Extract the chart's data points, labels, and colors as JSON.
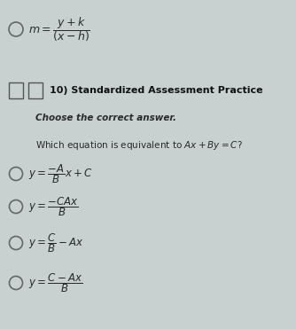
{
  "background_color": "#c8d0d0",
  "title_text": "10) Standardized Assessment Practice",
  "subtitle_text": "Choose the correct answer.",
  "question_text": "Which equation is equivalent to $Ax + By = C$?",
  "option1": "$y = \\dfrac{-A}{B}x + C$",
  "option2": "$y = \\dfrac{-CAx}{B}$",
  "option3": "$y = \\dfrac{C}{B} - Ax$",
  "option4": "$y = \\dfrac{C - Ax}{B}$",
  "formula_top": "$m = \\dfrac{y + k}{(x - h)}$",
  "text_color": "#2a2a2a",
  "title_color": "#111111",
  "circle_color": "#666666",
  "box_color": "#555555"
}
